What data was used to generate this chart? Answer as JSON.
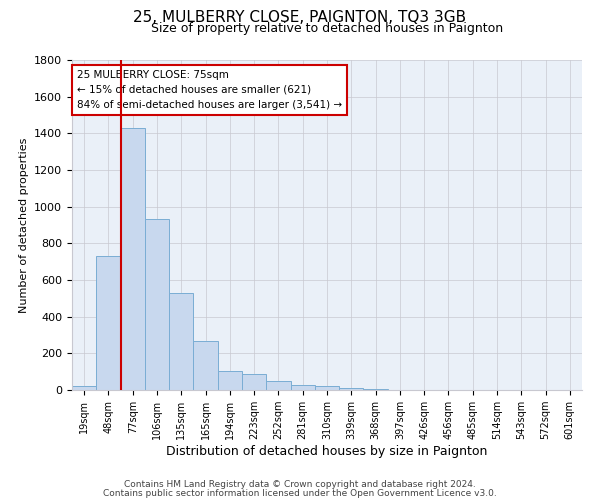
{
  "title": "25, MULBERRY CLOSE, PAIGNTON, TQ3 3GB",
  "subtitle": "Size of property relative to detached houses in Paignton",
  "xlabel": "Distribution of detached houses by size in Paignton",
  "ylabel": "Number of detached properties",
  "bar_labels": [
    "19sqm",
    "48sqm",
    "77sqm",
    "106sqm",
    "135sqm",
    "165sqm",
    "194sqm",
    "223sqm",
    "252sqm",
    "281sqm",
    "310sqm",
    "339sqm",
    "368sqm",
    "397sqm",
    "426sqm",
    "456sqm",
    "485sqm",
    "514sqm",
    "543sqm",
    "572sqm",
    "601sqm"
  ],
  "bar_values": [
    20,
    730,
    1430,
    935,
    530,
    270,
    103,
    90,
    50,
    30,
    20,
    10,
    5,
    2,
    1,
    1,
    0,
    0,
    0,
    0,
    0
  ],
  "bar_color": "#c8d8ee",
  "bar_edgecolor": "#7aadd4",
  "vline_color": "#cc0000",
  "annotation_line1": "25 MULBERRY CLOSE: 75sqm",
  "annotation_line2": "← 15% of detached houses are smaller (621)",
  "annotation_line3": "84% of semi-detached houses are larger (3,541) →",
  "annotation_box_edgecolor": "#cc0000",
  "ylim": [
    0,
    1800
  ],
  "yticks": [
    0,
    200,
    400,
    600,
    800,
    1000,
    1200,
    1400,
    1600,
    1800
  ],
  "footer1": "Contains HM Land Registry data © Crown copyright and database right 2024.",
  "footer2": "Contains public sector information licensed under the Open Government Licence v3.0.",
  "background_color": "#ffffff",
  "axes_bg_color": "#eaf0f8",
  "grid_color": "#c8c8d0"
}
